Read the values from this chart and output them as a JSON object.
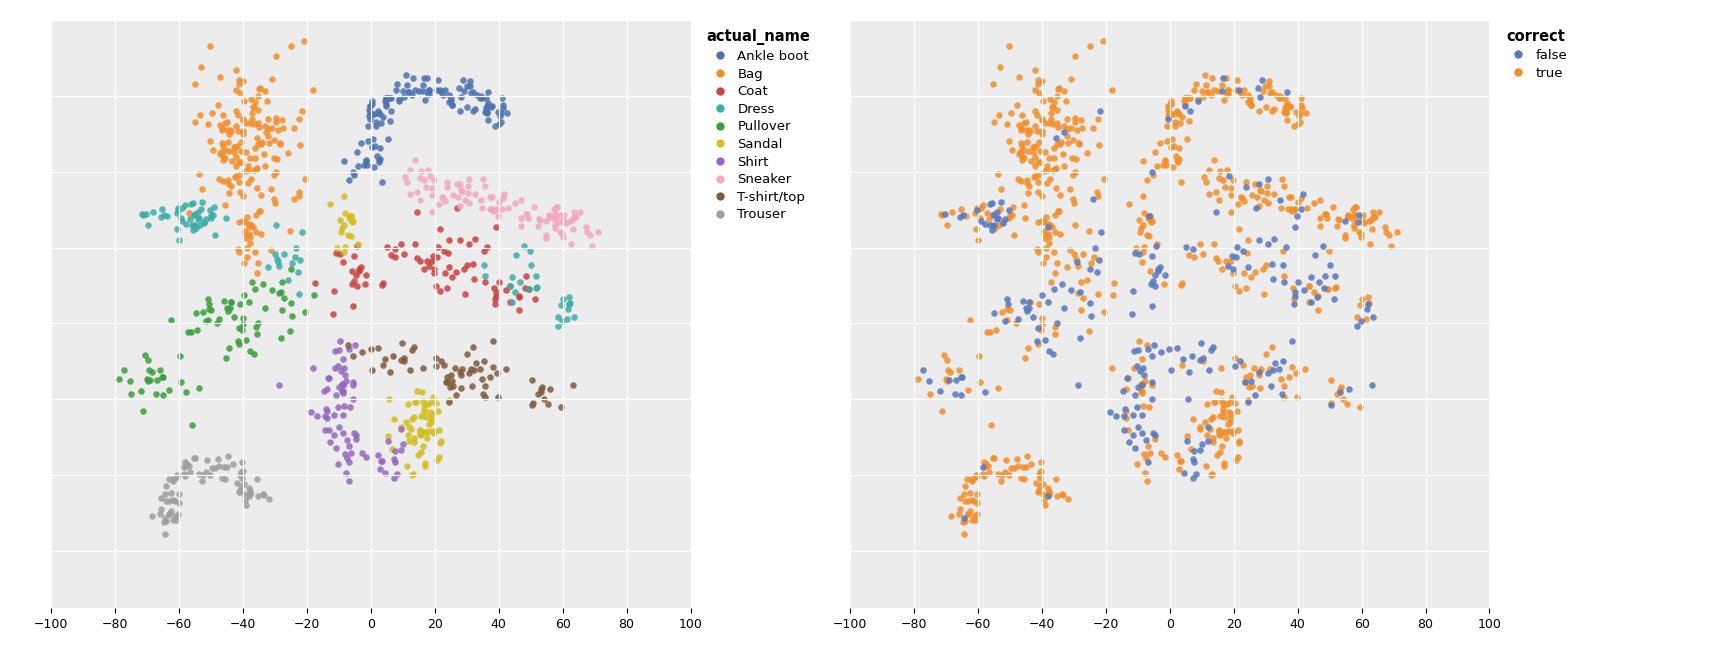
{
  "legend1_title": "actual_name",
  "legend2_title": "correct",
  "classes": [
    "Ankle boot",
    "Bag",
    "Coat",
    "Dress",
    "Pullover",
    "Sandal",
    "Shirt",
    "Sneaker",
    "T-shirt/top",
    "Trouser"
  ],
  "class_colors": {
    "Ankle boot": "#4c72b0",
    "Bag": "#f28e2b",
    "Coat": "#c94040",
    "Dress": "#3aada8",
    "Pullover": "#3a9e3a",
    "Sandal": "#d4be20",
    "Shirt": "#9467bd",
    "Sneaker": "#f2a8c0",
    "T-shirt/top": "#7f5a3c",
    "Trouser": "#9e9e9e"
  },
  "correct_colors": {
    "false": "#5877be",
    "true": "#f28e2b"
  },
  "xlim": [
    -100,
    100
  ],
  "ylim": [
    -75,
    80
  ],
  "xticks": [
    -100,
    -80,
    -60,
    -40,
    -20,
    0,
    20,
    40,
    60,
    80,
    100
  ],
  "figsize": [
    17.12,
    6.68
  ],
  "dpi": 100,
  "bg_color": "#ececec",
  "grid_color": "white",
  "point_size": 22,
  "point_alpha": 0.85
}
